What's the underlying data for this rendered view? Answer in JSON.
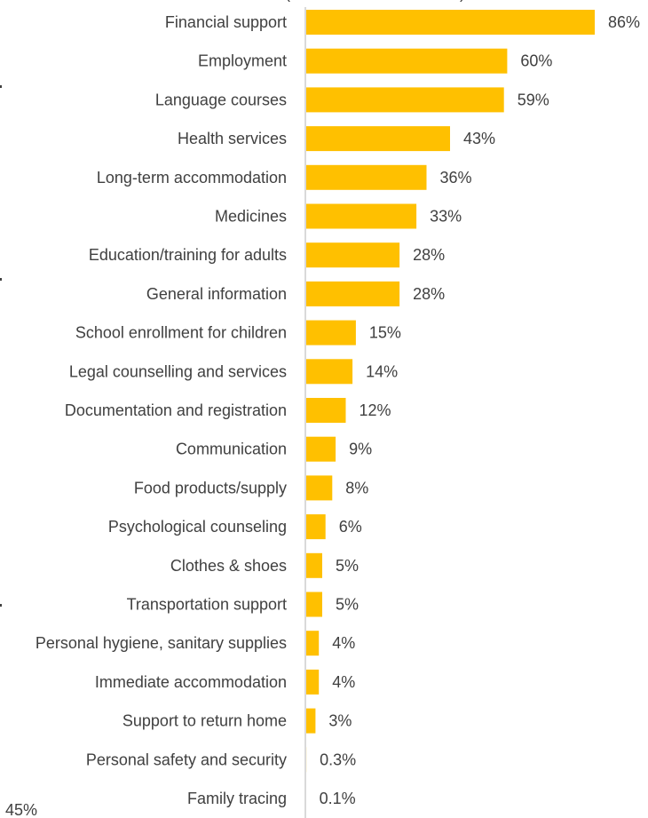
{
  "chart_data": {
    "type": "bar",
    "orientation": "horizontal",
    "categories": [
      "Financial support",
      "Employment",
      "Language courses",
      "Health services",
      "Long-term accommodation",
      "Medicines",
      "Education/training for adults",
      "General information",
      "School enrollment for children",
      "Legal counselling and services",
      "Documentation and registration",
      "Communication",
      "Food products/supply",
      "Psychological counseling",
      "Clothes & shoes",
      "Transportation support",
      "Personal hygiene, sanitary supplies",
      "Immediate accommodation",
      "Support to return home",
      "Personal safety and security",
      "Family tracing"
    ],
    "values": [
      86,
      60,
      59,
      43,
      36,
      33,
      28,
      28,
      15,
      14,
      12,
      9,
      8,
      6,
      5,
      5,
      4,
      4,
      3,
      0.3,
      0.1
    ],
    "value_labels": [
      "86%",
      "60%",
      "59%",
      "43%",
      "36%",
      "33%",
      "28%",
      "28%",
      "15%",
      "14%",
      "12%",
      "9%",
      "8%",
      "6%",
      "5%",
      "5%",
      "4%",
      "4%",
      "3%",
      "0.3%",
      "0.1%"
    ],
    "xlim": [
      0,
      100
    ],
    "bar_color": "#FFC000",
    "axis_color": "#D9D9D9",
    "text_color": "#404040",
    "grid": false,
    "legend": "none"
  },
  "clipped_text": {
    "bottom_left_value": "45%"
  }
}
